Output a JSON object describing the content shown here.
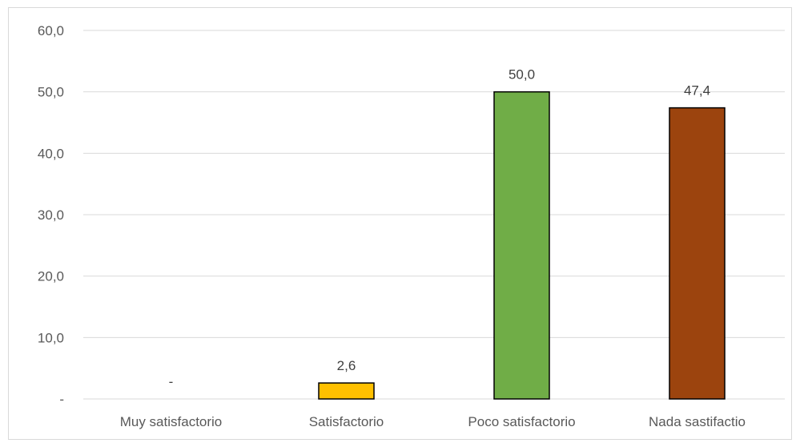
{
  "chart_data": {
    "type": "bar",
    "title": "",
    "xlabel": "",
    "ylabel": "",
    "categories": [
      "Muy satisfactorio",
      "Satisfactorio",
      "Poco satisfactorio",
      "Nada sastifactio"
    ],
    "values": [
      0,
      2.6,
      50.0,
      47.4
    ],
    "value_labels": [
      "-",
      "2,6",
      "50,0",
      "47,4"
    ],
    "colors": [
      "#ffc000",
      "#ffc000",
      "#70ad47",
      "#9c440e"
    ],
    "ylim": [
      0,
      60
    ],
    "y_ticks": [
      0,
      10,
      20,
      30,
      40,
      50,
      60
    ],
    "y_tick_labels": [
      "-",
      "10,0",
      "20,0",
      "30,0",
      "40,0",
      "50,0",
      "60,0"
    ],
    "grid": true,
    "legend": "none"
  }
}
